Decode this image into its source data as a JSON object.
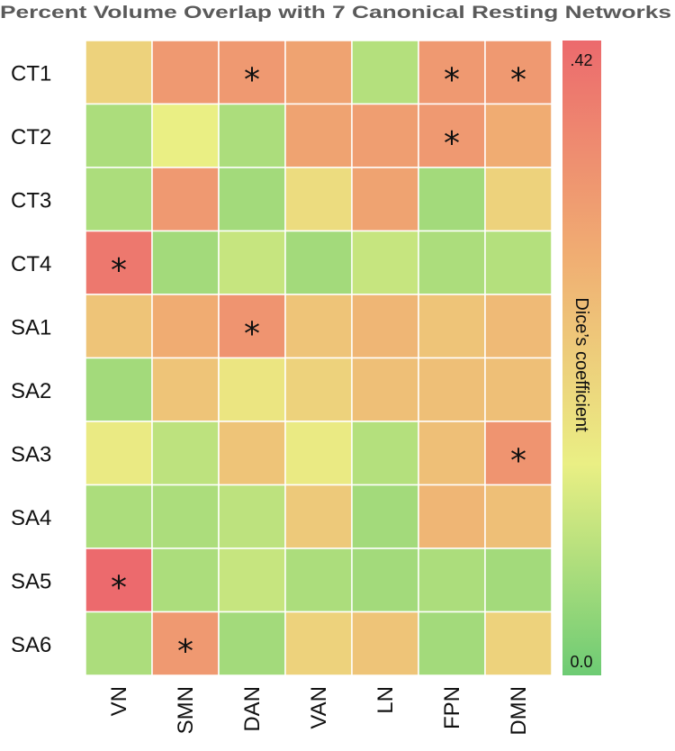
{
  "chart_data": {
    "type": "heatmap",
    "title": "Percent Volume Overlap with 7 Canonical  Resting Networks",
    "rows": [
      "CT1",
      "CT2",
      "CT3",
      "CT4",
      "SA1",
      "SA2",
      "SA3",
      "SA4",
      "SA5",
      "SA6"
    ],
    "columns": [
      "VN",
      "SMN",
      "DAN",
      "VAN",
      "LN",
      "FPN",
      "DMN"
    ],
    "values": [
      [
        0.2,
        0.32,
        0.32,
        0.3,
        0.08,
        0.32,
        0.32
      ],
      [
        0.07,
        0.14,
        0.07,
        0.3,
        0.31,
        0.32,
        0.28
      ],
      [
        0.07,
        0.32,
        0.06,
        0.18,
        0.3,
        0.06,
        0.2
      ],
      [
        0.39,
        0.06,
        0.1,
        0.06,
        0.1,
        0.07,
        0.08
      ],
      [
        0.23,
        0.28,
        0.33,
        0.23,
        0.26,
        0.23,
        0.25
      ],
      [
        0.06,
        0.23,
        0.16,
        0.2,
        0.24,
        0.24,
        0.24
      ],
      [
        0.15,
        0.09,
        0.23,
        0.15,
        0.08,
        0.24,
        0.33
      ],
      [
        0.07,
        0.07,
        0.09,
        0.22,
        0.06,
        0.26,
        0.24
      ],
      [
        0.42,
        0.07,
        0.1,
        0.07,
        0.06,
        0.07,
        0.06
      ],
      [
        0.07,
        0.32,
        0.06,
        0.2,
        0.23,
        0.06,
        0.2
      ]
    ],
    "significant": [
      [
        0,
        2
      ],
      [
        0,
        5
      ],
      [
        0,
        6
      ],
      [
        1,
        5
      ],
      [
        3,
        0
      ],
      [
        4,
        2
      ],
      [
        6,
        6
      ],
      [
        8,
        0
      ],
      [
        9,
        1
      ]
    ],
    "marker": "*",
    "colorbar": {
      "label": "Dice’s coefficient",
      "min": 0.0,
      "max": 0.42,
      "min_label": "0.0",
      "max_label": ".42",
      "colors": [
        "#6dcb74",
        "#eaef84",
        "#f0ac72",
        "#ec6a6d"
      ]
    }
  }
}
